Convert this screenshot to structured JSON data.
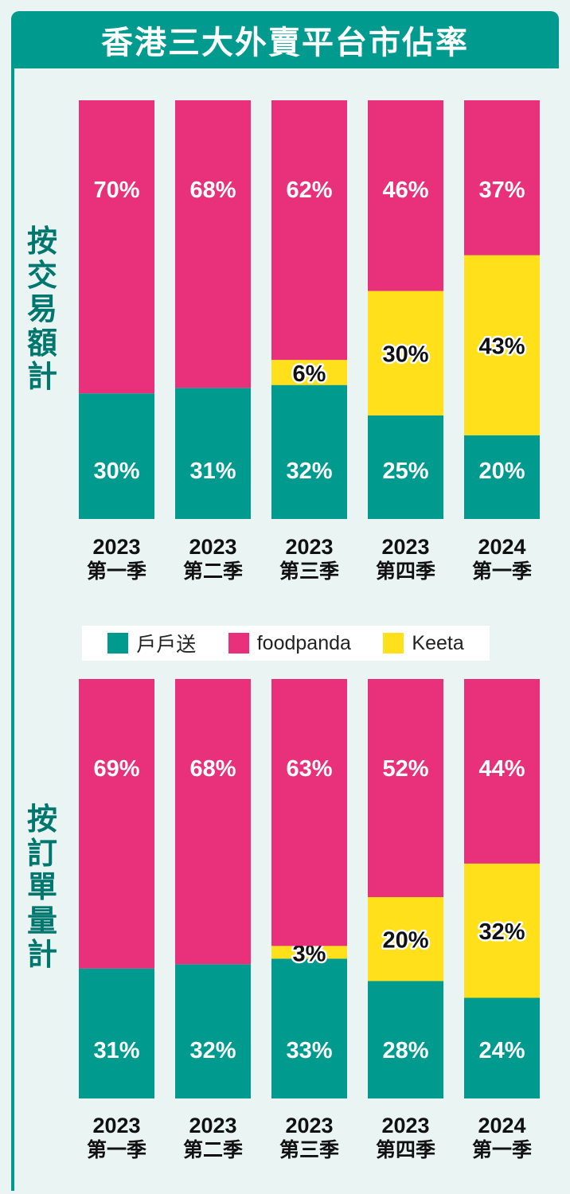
{
  "title": "香港三大外賣平台市佔率",
  "colors": {
    "header": "#009a8e",
    "deliveroo": "#009a8e",
    "foodpanda": "#e8317a",
    "keeta": "#ffe01a",
    "background": "#eaf4f2",
    "side_label": "#00776e"
  },
  "legend": {
    "items": [
      {
        "label": "戶戶送",
        "color": "#009a8e"
      },
      {
        "label": "foodpanda",
        "color": "#e8317a"
      },
      {
        "label": "Keeta",
        "color": "#ffe01a"
      }
    ]
  },
  "chart_data": [
    {
      "type": "bar",
      "stacked": true,
      "side_label": "按交易額計",
      "categories": [
        [
          "2023",
          "第一季"
        ],
        [
          "2023",
          "第二季"
        ],
        [
          "2023",
          "第三季"
        ],
        [
          "2023",
          "第四季"
        ],
        [
          "2024",
          "第一季"
        ]
      ],
      "series": [
        {
          "name": "戶戶送",
          "values": [
            30,
            31,
            32,
            25,
            20
          ],
          "labels": [
            "30%",
            "31%",
            "32%",
            "25%",
            "20%"
          ]
        },
        {
          "name": "Keeta",
          "values": [
            0,
            0,
            6,
            30,
            43
          ],
          "labels": [
            "",
            "",
            "6%",
            "30%",
            "43%"
          ]
        },
        {
          "name": "foodpanda",
          "values": [
            70,
            68,
            62,
            46,
            37
          ],
          "labels": [
            "70%",
            "68%",
            "62%",
            "46%",
            "37%"
          ]
        }
      ],
      "ylim": [
        0,
        100
      ]
    },
    {
      "type": "bar",
      "stacked": true,
      "side_label": "按訂單量計",
      "categories": [
        [
          "2023",
          "第一季"
        ],
        [
          "2023",
          "第二季"
        ],
        [
          "2023",
          "第三季"
        ],
        [
          "2023",
          "第四季"
        ],
        [
          "2024",
          "第一季"
        ]
      ],
      "series": [
        {
          "name": "戶戶送",
          "values": [
            31,
            32,
            33,
            28,
            24
          ],
          "labels": [
            "31%",
            "32%",
            "33%",
            "28%",
            "24%"
          ]
        },
        {
          "name": "Keeta",
          "values": [
            0,
            0,
            3,
            20,
            32
          ],
          "labels": [
            "",
            "",
            "3%",
            "20%",
            "32%"
          ]
        },
        {
          "name": "foodpanda",
          "values": [
            69,
            68,
            63,
            52,
            44
          ],
          "labels": [
            "69%",
            "68%",
            "63%",
            "52%",
            "44%"
          ]
        }
      ],
      "ylim": [
        0,
        100
      ]
    }
  ]
}
